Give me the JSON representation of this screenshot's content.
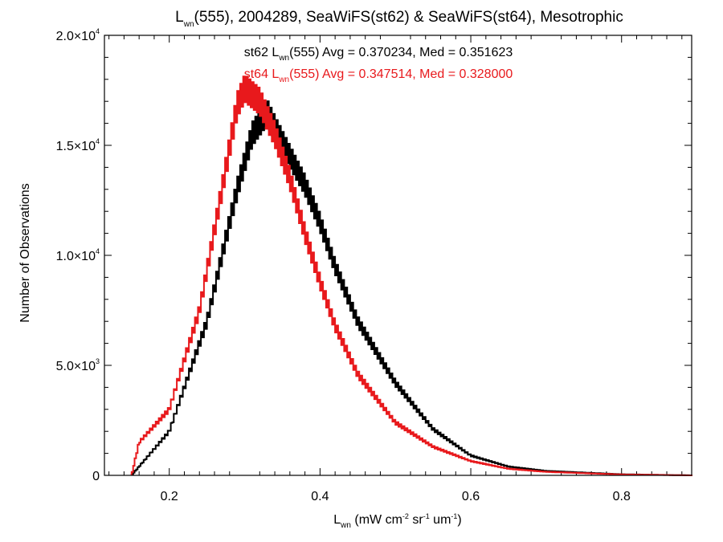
{
  "chart_data": {
    "type": "line",
    "step": true,
    "title": {
      "main": "L",
      "main_sub": "wn",
      "rest": "(555), 2004289, SeaWiFS(st62) & SeaWiFS(st64), Mesotrophic"
    },
    "xlabel": {
      "main": "L",
      "main_sub": "wn",
      "p1": " (mW cm",
      "s1": "-2",
      "p2": " sr",
      "s2": "-1",
      "p3": " um",
      "s3": "-1",
      "p4": ")"
    },
    "ylabel": "Number of Observations",
    "xlim": [
      0.114,
      0.893
    ],
    "ylim": [
      0,
      20000
    ],
    "x_ticks": [
      {
        "value": 0.2,
        "label": "0.2"
      },
      {
        "value": 0.4,
        "label": "0.4"
      },
      {
        "value": 0.6,
        "label": "0.6"
      },
      {
        "value": 0.8,
        "label": "0.8"
      }
    ],
    "y_ticks": [
      {
        "value": 0,
        "label": "0",
        "exp": ""
      },
      {
        "value": 5000,
        "label": "5.0×10",
        "exp": "3"
      },
      {
        "value": 10000,
        "label": "1.0×10",
        "exp": "4"
      },
      {
        "value": 15000,
        "label": "1.5×10",
        "exp": "4"
      },
      {
        "value": 20000,
        "label": "2.0×10",
        "exp": "4"
      }
    ],
    "grid": false,
    "series": [
      {
        "name": "st62",
        "color": "#000000",
        "stats": {
          "prefix": "st62 L",
          "sub": "wn",
          "rest": "(555) Avg = 0.370234, Med = 0.351623"
        },
        "x": [
          0.15,
          0.2,
          0.25,
          0.29,
          0.31,
          0.33,
          0.34,
          0.36,
          0.38,
          0.4,
          0.42,
          0.45,
          0.5,
          0.55,
          0.6,
          0.65,
          0.7,
          0.8,
          0.893
        ],
        "y": [
          0,
          2000,
          7000,
          13000,
          15500,
          16500,
          15800,
          14500,
          13200,
          11500,
          9500,
          7000,
          4200,
          2100,
          900,
          400,
          200,
          50,
          0
        ]
      },
      {
        "name": "st64",
        "color": "#e8191c",
        "stats": {
          "prefix": "st64 L",
          "sub": "wn",
          "rest": "(555) Avg = 0.347514, Med = 0.328000"
        },
        "x": [
          0.15,
          0.16,
          0.2,
          0.24,
          0.27,
          0.29,
          0.3,
          0.32,
          0.34,
          0.36,
          0.38,
          0.4,
          0.42,
          0.45,
          0.5,
          0.55,
          0.6,
          0.65,
          0.7,
          0.8,
          0.893
        ],
        "y": [
          0,
          1500,
          3000,
          7500,
          13000,
          16800,
          17600,
          17000,
          15500,
          13500,
          11000,
          8800,
          6800,
          4600,
          2400,
          1300,
          650,
          300,
          160,
          40,
          0
        ]
      }
    ]
  }
}
